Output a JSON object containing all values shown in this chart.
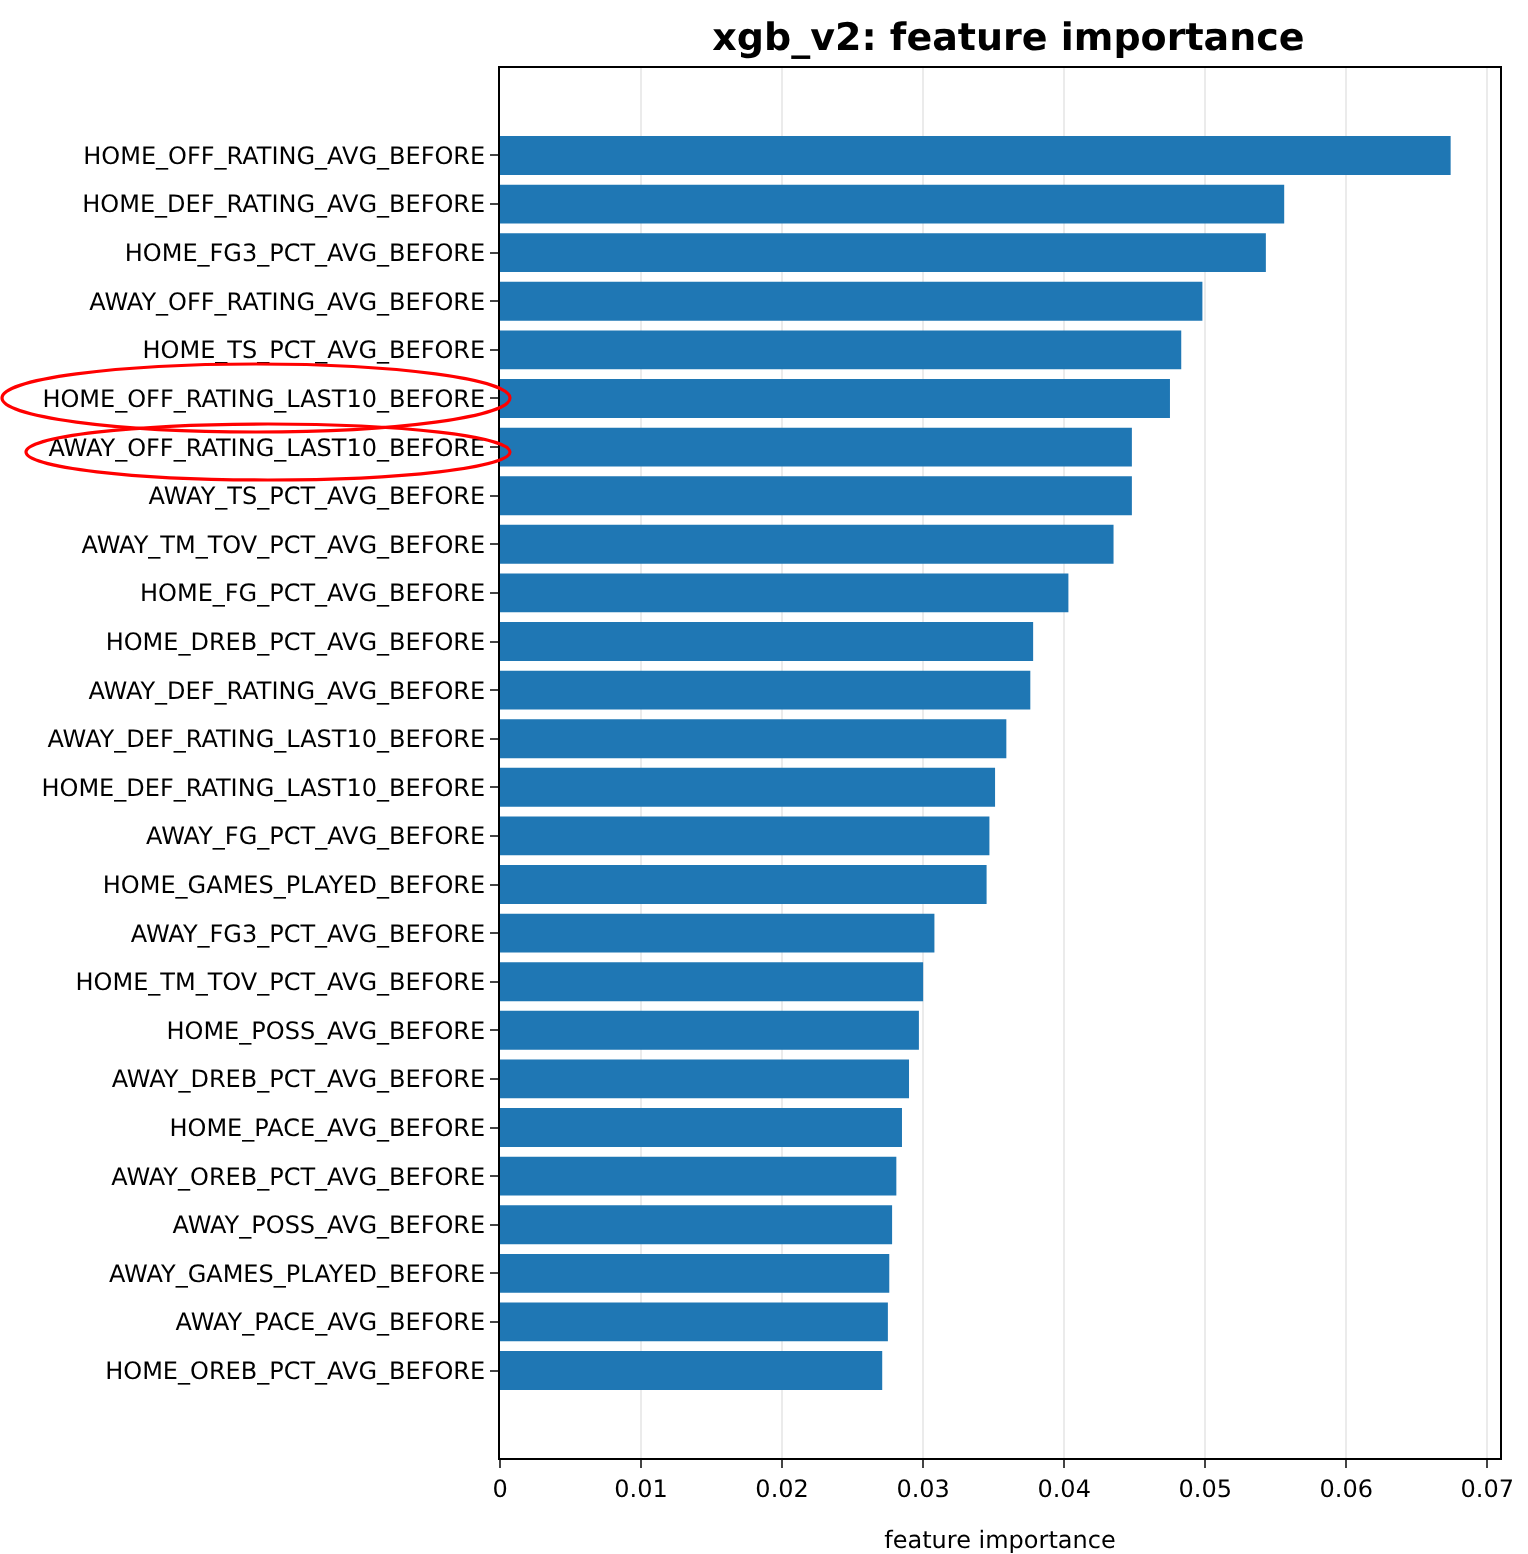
{
  "chart_data": {
    "type": "bar",
    "orientation": "horizontal",
    "title": "xgb_v2: feature importance",
    "xlabel": "feature importance",
    "categories": [
      "HOME_OFF_RATING_AVG_BEFORE",
      "HOME_DEF_RATING_AVG_BEFORE",
      "HOME_FG3_PCT_AVG_BEFORE",
      "AWAY_OFF_RATING_AVG_BEFORE",
      "HOME_TS_PCT_AVG_BEFORE",
      "HOME_OFF_RATING_LAST10_BEFORE",
      "AWAY_OFF_RATING_LAST10_BEFORE",
      "AWAY_TS_PCT_AVG_BEFORE",
      "AWAY_TM_TOV_PCT_AVG_BEFORE",
      "HOME_FG_PCT_AVG_BEFORE",
      "HOME_DREB_PCT_AVG_BEFORE",
      "AWAY_DEF_RATING_AVG_BEFORE",
      "AWAY_DEF_RATING_LAST10_BEFORE",
      "HOME_DEF_RATING_LAST10_BEFORE",
      "AWAY_FG_PCT_AVG_BEFORE",
      "HOME_GAMES_PLAYED_BEFORE",
      "AWAY_FG3_PCT_AVG_BEFORE",
      "HOME_TM_TOV_PCT_AVG_BEFORE",
      "HOME_POSS_AVG_BEFORE",
      "AWAY_DREB_PCT_AVG_BEFORE",
      "HOME_PACE_AVG_BEFORE",
      "AWAY_OREB_PCT_AVG_BEFORE",
      "AWAY_POSS_AVG_BEFORE",
      "AWAY_GAMES_PLAYED_BEFORE",
      "AWAY_PACE_AVG_BEFORE",
      "HOME_OREB_PCT_AVG_BEFORE"
    ],
    "values": [
      0.0674,
      0.0556,
      0.0543,
      0.0498,
      0.0483,
      0.0475,
      0.0448,
      0.0448,
      0.0435,
      0.0403,
      0.0378,
      0.0376,
      0.0359,
      0.0351,
      0.0347,
      0.0345,
      0.0308,
      0.03,
      0.0297,
      0.029,
      0.0285,
      0.0281,
      0.0278,
      0.0276,
      0.0275,
      0.0271
    ],
    "color": "#1f77b4",
    "xlim": [
      0,
      0.0709
    ],
    "xticks": [
      0,
      0.01,
      0.02,
      0.03,
      0.04,
      0.05,
      0.06,
      0.07
    ],
    "grid": "x"
  }
}
